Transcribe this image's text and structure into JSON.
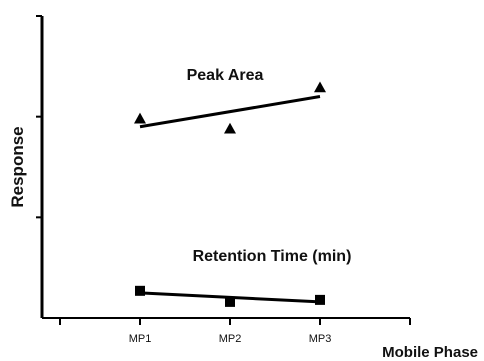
{
  "chart_data": {
    "type": "scatter",
    "xlabel": "Mobile Phase",
    "ylabel": "Response",
    "categories": [
      "MP1",
      "MP2",
      "MP3"
    ],
    "ylim": [
      0,
      3
    ],
    "yticks": [
      1,
      2,
      3
    ],
    "grid": false,
    "series": [
      {
        "name": "Peak Area",
        "marker": "triangle",
        "values": [
          1.98,
          1.88,
          2.29
        ],
        "trend": [
          1.9,
          2.2
        ]
      },
      {
        "name": "Retention Time (min)",
        "marker": "square",
        "values": [
          0.27,
          0.16,
          0.18
        ],
        "trend": [
          0.25,
          0.16
        ]
      }
    ],
    "colors": {
      "marks": "#000000"
    }
  }
}
